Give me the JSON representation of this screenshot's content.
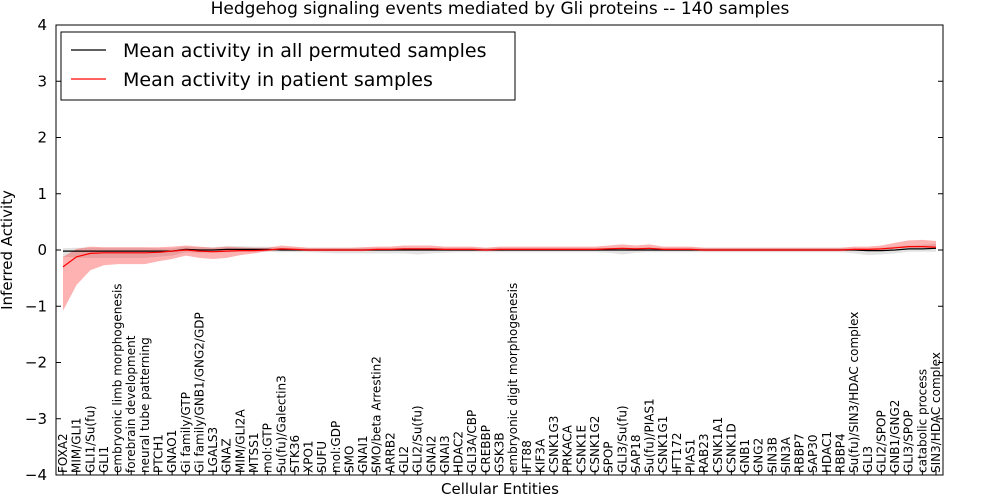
{
  "chart_data": {
    "type": "line",
    "title": "Hedgehog signaling events mediated by Gli proteins -- 140 samples",
    "xlabel": "Cellular Entities",
    "ylabel": "Inferred Activity",
    "ylim": [
      -4,
      4
    ],
    "yticks": [
      4,
      3,
      2,
      1,
      0,
      -1,
      -2,
      -3,
      -4
    ],
    "ytick_labels": [
      "4",
      "3",
      "2",
      "1",
      "0",
      "−1",
      "−2",
      "−3",
      "−4"
    ],
    "legend_position": "top-left",
    "categories": [
      "FOXA2",
      "MIM/GLI1",
      "GLI1/Su(fu)",
      "GLI1",
      "embryonic limb morphogenesis",
      "forebrain development",
      "neural tube patterning",
      "PTCH1",
      "GNAO1",
      "Gi family/GTP",
      "Gi family/GNB1/GNG2/GDP",
      "LGALS3",
      "GNAZ",
      "MIM/GLI2A",
      "MTSS1",
      "mol:GTP",
      "Su(fu)/Galectin3",
      "STK36",
      "XPO1",
      "SUFU",
      "mol:GDP",
      "SMO",
      "GNAI1",
      "SMO/beta Arrestin2",
      "ARRB2",
      "GLI2",
      "GLI2/Su(fu)",
      "GNAI2",
      "GNAI3",
      "HDAC2",
      "GLI3A/CBP",
      "CREBBP",
      "GSK3B",
      "embryonic digit morphogenesis",
      "IFT88",
      "KIF3A",
      "CSNK1G3",
      "PRKACA",
      "CSNK1E",
      "CSNK1G2",
      "SPOP",
      "GLI3/Su(fu)",
      "SAP18",
      "Su(fu)/PIAS1",
      "CSNK1G1",
      "IFT172",
      "PIAS1",
      "RAB23",
      "CSNK1A1",
      "CSNK1D",
      "GNB1",
      "GNG2",
      "SIN3B",
      "SIN3A",
      "RBBP7",
      "SAP30",
      "HDAC1",
      "RBBP4",
      "Su(fu)/SIN3/HDAC complex",
      "GLI3",
      "GLI2/SPOP",
      "GNB1/GNG2",
      "GLI3/SPOP",
      "catabolic process",
      "SIN3/HDAC complex"
    ],
    "series": [
      {
        "name": "Mean activity in all permuted samples",
        "color": "#000000",
        "values": [
          -0.02,
          -0.02,
          -0.02,
          -0.02,
          -0.02,
          -0.02,
          -0.02,
          -0.02,
          -0.02,
          0.01,
          0.0,
          0.0,
          0.01,
          0.01,
          0.01,
          0.01,
          0.0,
          0.0,
          0.0,
          0.0,
          0.0,
          0.0,
          0.0,
          0.0,
          0.0,
          0.0,
          0.0,
          0.0,
          0.0,
          0.0,
          0.0,
          0.0,
          0.0,
          0.0,
          0.0,
          0.0,
          0.0,
          0.0,
          0.0,
          0.0,
          0.0,
          0.0,
          0.0,
          0.0,
          0.0,
          0.0,
          0.0,
          0.0,
          0.0,
          0.0,
          0.0,
          0.0,
          0.0,
          0.0,
          0.0,
          0.0,
          0.0,
          0.0,
          0.0,
          -0.01,
          -0.01,
          0.0,
          0.02,
          0.02,
          0.03
        ],
        "band_low": [
          -0.1,
          -0.12,
          -0.12,
          -0.12,
          -0.12,
          -0.12,
          -0.12,
          -0.1,
          -0.08,
          -0.05,
          -0.05,
          -0.05,
          -0.05,
          -0.04,
          -0.04,
          -0.04,
          -0.04,
          -0.04,
          -0.04,
          -0.05,
          -0.06,
          -0.06,
          -0.06,
          -0.06,
          -0.06,
          -0.06,
          -0.08,
          -0.06,
          -0.05,
          -0.04,
          -0.04,
          -0.04,
          -0.04,
          -0.04,
          -0.04,
          -0.04,
          -0.04,
          -0.04,
          -0.04,
          -0.04,
          -0.05,
          -0.08,
          -0.05,
          -0.04,
          -0.04,
          -0.04,
          -0.04,
          -0.04,
          -0.04,
          -0.04,
          -0.04,
          -0.04,
          -0.04,
          -0.04,
          -0.04,
          -0.04,
          -0.04,
          -0.04,
          -0.06,
          -0.08,
          -0.07,
          -0.06,
          -0.05,
          -0.05,
          -0.06
        ],
        "band_high": [
          0.05,
          0.06,
          0.06,
          0.06,
          0.06,
          0.06,
          0.06,
          0.05,
          0.05,
          0.05,
          0.05,
          0.05,
          0.06,
          0.06,
          0.05,
          0.05,
          0.04,
          0.04,
          0.04,
          0.04,
          0.04,
          0.04,
          0.04,
          0.04,
          0.04,
          0.04,
          0.04,
          0.04,
          0.04,
          0.04,
          0.04,
          0.04,
          0.04,
          0.04,
          0.04,
          0.04,
          0.04,
          0.04,
          0.04,
          0.04,
          0.04,
          0.04,
          0.04,
          0.04,
          0.04,
          0.04,
          0.04,
          0.04,
          0.04,
          0.04,
          0.04,
          0.04,
          0.04,
          0.04,
          0.04,
          0.04,
          0.04,
          0.04,
          0.04,
          0.04,
          0.05,
          0.06,
          0.06,
          0.07,
          0.08
        ]
      },
      {
        "name": "Mean activity in patient samples",
        "color": "#ff0000",
        "values": [
          -0.3,
          -0.12,
          -0.06,
          -0.05,
          -0.05,
          -0.05,
          -0.05,
          -0.04,
          -0.02,
          0.0,
          -0.02,
          -0.03,
          -0.02,
          -0.01,
          -0.01,
          0.0,
          0.02,
          0.01,
          0.0,
          0.0,
          0.0,
          0.0,
          0.0,
          0.01,
          0.01,
          0.02,
          0.02,
          0.02,
          0.01,
          0.01,
          0.01,
          0.0,
          0.01,
          0.01,
          0.01,
          0.01,
          0.01,
          0.01,
          0.01,
          0.01,
          0.02,
          0.03,
          0.02,
          0.03,
          0.01,
          0.01,
          0.01,
          0.0,
          0.0,
          0.0,
          0.0,
          0.0,
          0.0,
          0.0,
          0.0,
          0.0,
          0.0,
          0.0,
          0.01,
          0.01,
          0.02,
          0.04,
          0.06,
          0.06,
          0.05
        ],
        "band_low": [
          -0.78,
          -0.5,
          -0.3,
          -0.22,
          -0.2,
          -0.2,
          -0.2,
          -0.16,
          -0.14,
          -0.1,
          -0.12,
          -0.13,
          -0.12,
          -0.08,
          -0.05,
          -0.02,
          -0.02,
          -0.02,
          -0.02,
          -0.02,
          -0.02,
          -0.02,
          -0.02,
          -0.02,
          -0.02,
          -0.02,
          -0.02,
          -0.02,
          -0.02,
          -0.02,
          -0.02,
          -0.02,
          -0.02,
          -0.02,
          -0.02,
          -0.02,
          -0.02,
          -0.02,
          -0.02,
          -0.02,
          -0.02,
          -0.02,
          -0.02,
          -0.02,
          -0.02,
          -0.02,
          -0.02,
          -0.02,
          -0.02,
          -0.02,
          -0.02,
          -0.02,
          -0.02,
          -0.02,
          -0.02,
          -0.02,
          -0.02,
          -0.02,
          -0.02,
          -0.02,
          -0.02,
          -0.02,
          -0.02,
          -0.02,
          -0.02
        ],
        "band_high": [
          0.18,
          0.14,
          0.12,
          0.1,
          0.1,
          0.1,
          0.1,
          0.09,
          0.08,
          0.08,
          0.08,
          0.07,
          0.08,
          0.06,
          0.05,
          0.04,
          0.06,
          0.05,
          0.04,
          0.04,
          0.04,
          0.04,
          0.05,
          0.05,
          0.05,
          0.06,
          0.06,
          0.06,
          0.05,
          0.05,
          0.05,
          0.04,
          0.05,
          0.05,
          0.05,
          0.05,
          0.05,
          0.05,
          0.05,
          0.05,
          0.06,
          0.07,
          0.06,
          0.07,
          0.05,
          0.05,
          0.05,
          0.04,
          0.04,
          0.04,
          0.04,
          0.04,
          0.04,
          0.04,
          0.04,
          0.04,
          0.04,
          0.04,
          0.05,
          0.05,
          0.06,
          0.09,
          0.11,
          0.12,
          0.11
        ]
      }
    ]
  }
}
